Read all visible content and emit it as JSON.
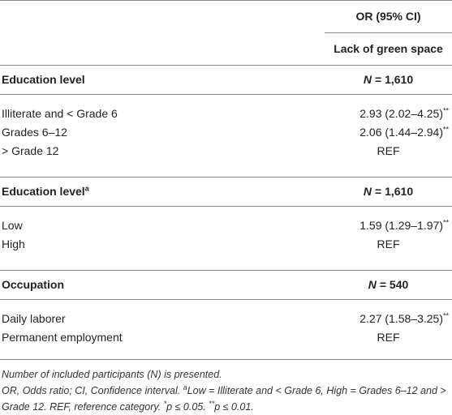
{
  "header": {
    "col_title": "OR (95% CI)",
    "col_subtitle": "Lack of green space"
  },
  "sections": [
    {
      "title": "Education level",
      "n_label": "N",
      "n_value": "= 1,610",
      "rows": [
        {
          "label": "Illiterate and < Grade 6",
          "value": "2.93 (2.02–4.25)",
          "sig": "**"
        },
        {
          "label": "Grades 6–12",
          "value": "2.06 (1.44–2.94)",
          "sig": "**"
        },
        {
          "label": "> Grade 12",
          "value": "REF"
        }
      ]
    },
    {
      "title": "Education level",
      "title_sup": "a",
      "n_label": "N",
      "n_value": "= 1,610",
      "rows": [
        {
          "label": "Low",
          "value": "1.59 (1.29–1.97)",
          "sig": "**"
        },
        {
          "label": "High",
          "value": "REF"
        }
      ]
    },
    {
      "title": "Occupation",
      "n_label": "N",
      "n_value": "= 540",
      "rows": [
        {
          "label": "Daily laborer",
          "value": "2.27 (1.58–3.25)",
          "sig": "**"
        },
        {
          "label": "Permanent employment",
          "value": "REF"
        }
      ]
    }
  ],
  "footnotes": [
    [
      "Number of included participants (N) is presented."
    ],
    [
      "OR, Odds ratio; CI, Confidence interval. ",
      "a",
      "Low = Illiterate and < Grade 6, High = Grades 6–12 and > Grade 12. REF, reference category. ",
      "*",
      "p ≤ 0.05. ",
      "**",
      "p ≤ 0.01."
    ]
  ]
}
